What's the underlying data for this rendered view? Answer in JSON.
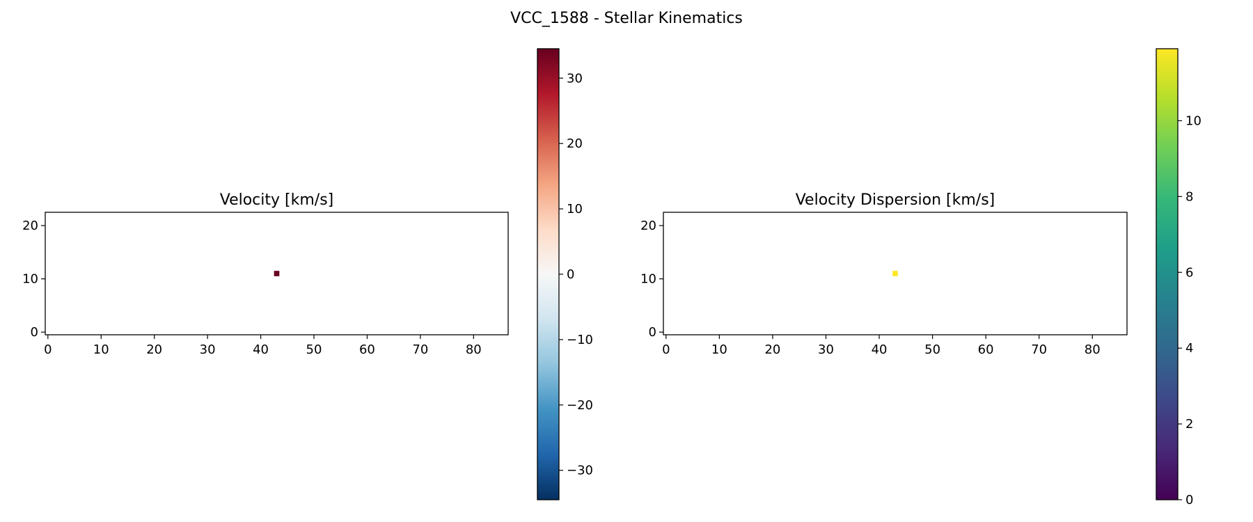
{
  "figure": {
    "title": "VCC_1588 - Stellar Kinematics"
  },
  "chart_data": [
    {
      "type": "heatmap",
      "title": "Velocity [km/s]",
      "xlim": [
        -0.5,
        86.5
      ],
      "ylim": [
        -0.5,
        22.5
      ],
      "xticks": [
        0,
        10,
        20,
        30,
        40,
        50,
        60,
        70,
        80
      ],
      "yticks": [
        0,
        10,
        20
      ],
      "cells": [
        {
          "x": 43,
          "y": 11,
          "value": 34
        }
      ],
      "colorbar": {
        "colormap": "RdBu_r",
        "range": [
          -34.5,
          34.5
        ],
        "ticks": [
          -30,
          -20,
          -10,
          0,
          10,
          20,
          30
        ],
        "colors": [
          "#053061",
          "#2166ac",
          "#4393c3",
          "#92c5de",
          "#d1e5f0",
          "#f7f7f7",
          "#fddbc7",
          "#f4a582",
          "#d6604d",
          "#b2182b",
          "#67001f"
        ]
      }
    },
    {
      "type": "heatmap",
      "title": "Velocity Dispersion [km/s]",
      "xlim": [
        -0.5,
        86.5
      ],
      "ylim": [
        -0.5,
        22.5
      ],
      "xticks": [
        0,
        10,
        20,
        30,
        40,
        50,
        60,
        70,
        80
      ],
      "yticks": [
        0,
        10,
        20
      ],
      "cells": [
        {
          "x": 43,
          "y": 11,
          "value": 11.9
        }
      ],
      "colorbar": {
        "colormap": "viridis",
        "range": [
          0,
          11.9
        ],
        "ticks": [
          0,
          2,
          4,
          6,
          8,
          10
        ],
        "colors": [
          "#440154",
          "#482878",
          "#3e4989",
          "#31688e",
          "#26828e",
          "#1f9e89",
          "#35b779",
          "#6ece58",
          "#b5de2b",
          "#fde725"
        ]
      }
    }
  ]
}
